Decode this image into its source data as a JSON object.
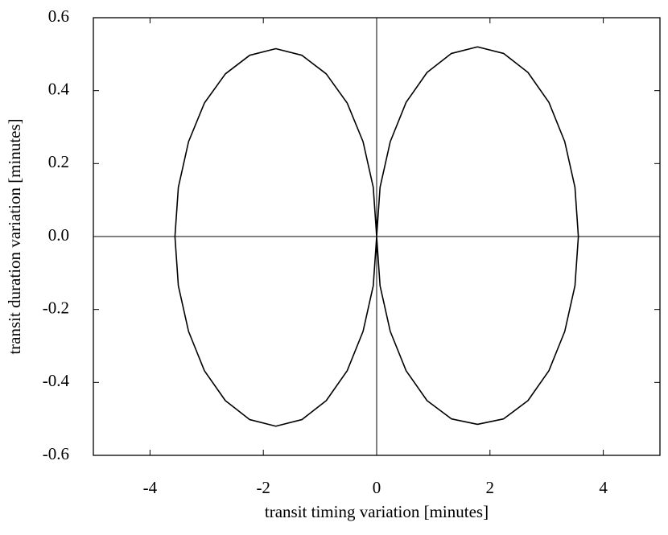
{
  "chart_data": {
    "type": "line",
    "x_label": "transit timing variation [minutes]",
    "y_label": "transit duration variation [minutes]",
    "xlim": [
      -5,
      5
    ],
    "ylim": [
      -0.6,
      0.6
    ],
    "xticks": [
      -4,
      -2,
      0,
      2,
      4
    ],
    "yticks": [
      -0.6,
      -0.4,
      -0.2,
      {
        "value": 0,
        "label": "0.0"
      },
      0.2,
      0.4,
      0.6
    ],
    "series": [
      {
        "color": "#000000",
        "x": [
          0,
          0.06,
          0.24,
          0.52,
          0.89,
          1.32,
          1.78,
          2.24,
          2.67,
          3.04,
          3.32,
          3.5,
          3.56,
          3.5,
          3.32,
          3.04,
          2.67,
          2.24,
          1.78,
          1.32,
          0.89,
          0.52,
          0.24,
          0.06,
          0,
          -0.06,
          -0.24,
          -0.52,
          -0.89,
          -1.32,
          -1.78,
          -2.24,
          -2.67,
          -3.04,
          -3.32,
          -3.5,
          -3.56,
          -3.5,
          -3.32,
          -3.04,
          -2.67,
          -2.24,
          -1.78,
          -1.32,
          -0.89,
          -0.52,
          -0.24,
          -0.06,
          0
        ],
        "values": [
          0,
          0.135,
          0.26,
          0.368,
          0.45,
          0.502,
          0.52,
          0.502,
          0.45,
          0.368,
          0.26,
          0.135,
          0,
          -0.135,
          -0.26,
          -0.368,
          -0.45,
          -0.5,
          -0.515,
          -0.5,
          -0.45,
          -0.368,
          -0.26,
          -0.135,
          0,
          0.135,
          0.26,
          0.366,
          0.446,
          0.497,
          0.515,
          0.497,
          0.446,
          0.366,
          0.26,
          0.135,
          0,
          -0.135,
          -0.26,
          -0.368,
          -0.45,
          -0.502,
          -0.52,
          -0.502,
          -0.45,
          -0.368,
          -0.26,
          -0.135,
          0
        ]
      }
    ]
  }
}
